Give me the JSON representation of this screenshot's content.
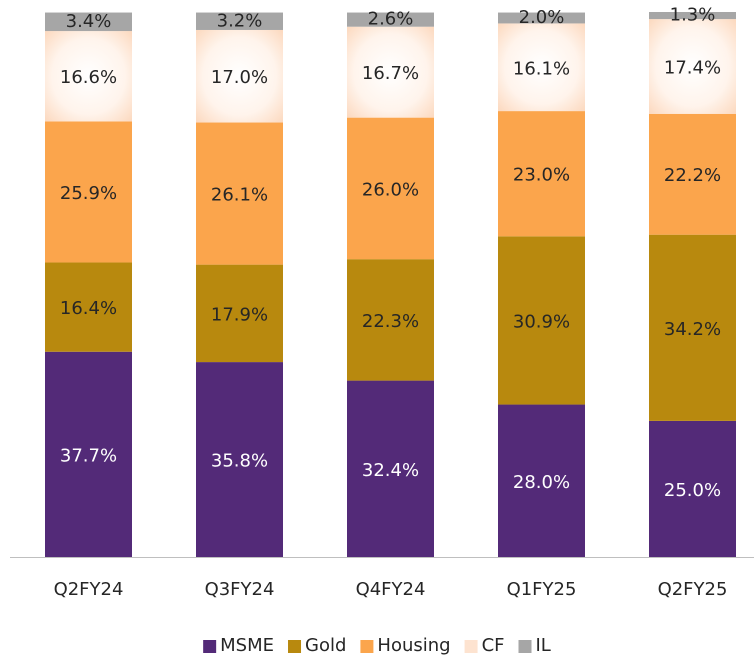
{
  "chart_data": {
    "type": "stacked_bar",
    "categories": [
      "Q2FY24",
      "Q3FY24",
      "Q4FY24",
      "Q1FY25",
      "Q2FY25"
    ],
    "series": [
      {
        "name": "MSME",
        "color": "#532a78",
        "label_color": "#ffffff",
        "values": [
          37.7,
          35.8,
          32.4,
          28,
          25
        ],
        "value_labels": [
          "37.7%",
          "35.8%",
          "32.4%",
          "28.0%",
          "25.0%"
        ]
      },
      {
        "name": "Gold",
        "color": "#b8890e",
        "label_color": "#262626",
        "values": [
          16.4,
          17.9,
          22.3,
          30.9,
          34.2
        ],
        "value_labels": [
          "16.4%",
          "17.9%",
          "22.3%",
          "30.9%",
          "34.2%"
        ]
      },
      {
        "name": "Housing",
        "color": "#fba54c",
        "label_color": "#262626",
        "values": [
          25.9,
          26.1,
          26,
          23,
          22.2
        ],
        "value_labels": [
          "25.9%",
          "26.1%",
          "26.0%",
          "23.0%",
          "22.2%"
        ]
      },
      {
        "name": "CF",
        "color": "#fde3d0",
        "label_color": "#262626",
        "values": [
          16.6,
          17,
          16.7,
          16.1,
          17.4
        ],
        "value_labels": [
          "16.6%",
          "17.0%",
          "16.7%",
          "16.1%",
          "17.4%"
        ]
      },
      {
        "name": "IL",
        "color": "#a6a6a6",
        "label_color": "#262626",
        "values": [
          3.4,
          3.2,
          2.6,
          2,
          1.3
        ],
        "value_labels": [
          "3.4%",
          "3.2%",
          "2.6%",
          "2.0%",
          "1.3%"
        ]
      }
    ],
    "legend": "bottom"
  }
}
